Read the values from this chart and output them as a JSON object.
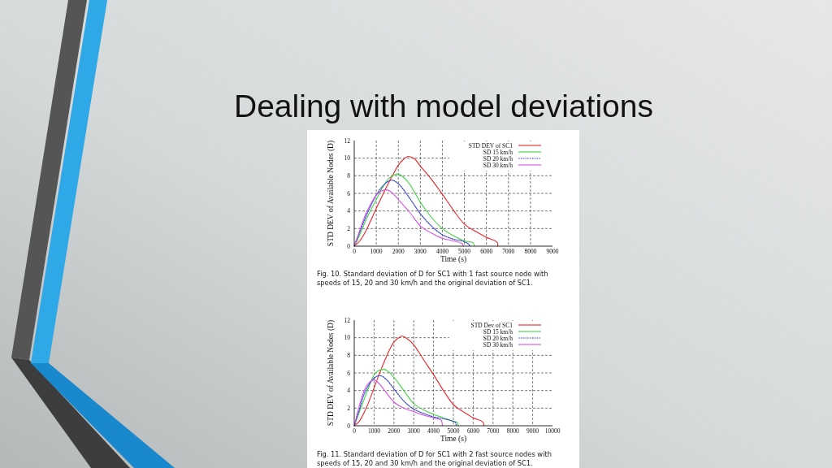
{
  "chart_data": [
    {
      "type": "line",
      "title": "Dealing with model deviations",
      "xlabel": "Time (s)",
      "ylabel": "STD DEV of Available Nodes (D)",
      "xlim": [
        0,
        9000
      ],
      "xticks": [
        0,
        1000,
        2000,
        3000,
        4000,
        5000,
        6000,
        7000,
        8000,
        9000
      ],
      "ylim": [
        0,
        12
      ],
      "yticks": [
        0,
        2,
        4,
        6,
        8,
        10,
        12
      ],
      "grid": true,
      "legend": "top right",
      "annotations": [
        "Fig. 10. Standard deviation of D for SC1 with 1 fast source node with speeds of 15, 20 and 30 km/h and the original deviation of SC1."
      ],
      "series": [
        {
          "name": "STD DEV of SC1",
          "color": "#e8262a",
          "x": [
            0,
            250,
            500,
            750,
            1000,
            1250,
            1500,
            1750,
            2000,
            2250,
            2450,
            2750,
            3000,
            3500,
            4000,
            4500,
            5000,
            5500,
            6000,
            6500,
            6520
          ],
          "values": [
            0,
            0.6,
            1.6,
            2.9,
            4.3,
            5.6,
            6.9,
            8.1,
            9.2,
            9.9,
            10.2,
            9.9,
            9.1,
            7.6,
            5.9,
            4.1,
            2.5,
            1.7,
            1.0,
            0.4,
            0
          ]
        },
        {
          "name": "SD 15 km/h",
          "color": "#44d444",
          "x": [
            0,
            250,
            500,
            750,
            1000,
            1250,
            1500,
            1750,
            1950,
            2250,
            2500,
            3000,
            3500,
            4000,
            4500,
            5000,
            5400,
            5450
          ],
          "values": [
            0,
            1.3,
            2.8,
            4.1,
            5.3,
            6.5,
            7.5,
            8.0,
            8.2,
            7.8,
            7.1,
            5.0,
            3.3,
            2.0,
            1.2,
            0.6,
            0.4,
            0
          ]
        },
        {
          "name": "SD 20 km/h",
          "color": "#2a3ccc",
          "line_style": "dotted",
          "x": [
            0,
            250,
            500,
            750,
            1000,
            1250,
            1500,
            1700,
            2000,
            2500,
            3000,
            3500,
            4000,
            4500,
            5000,
            5200,
            5250
          ],
          "values": [
            0,
            1.6,
            3.2,
            4.6,
            5.8,
            6.7,
            7.3,
            7.5,
            7.1,
            5.5,
            3.7,
            2.3,
            1.3,
            0.8,
            0.5,
            0.2,
            0
          ]
        },
        {
          "name": "SD 30 km/h",
          "color": "#d850e8",
          "x": [
            0,
            250,
            500,
            750,
            1000,
            1250,
            1450,
            1750,
            2000,
            2500,
            3000,
            3500,
            4000,
            4500,
            4900,
            4950
          ],
          "values": [
            0,
            1.8,
            3.5,
            4.8,
            5.8,
            6.3,
            6.4,
            6.0,
            5.3,
            3.9,
            2.3,
            1.5,
            0.9,
            0.6,
            0.3,
            0
          ]
        }
      ]
    },
    {
      "type": "line",
      "xlabel": "Time (s)",
      "ylabel": "STD DEV of Available Nodes (D)",
      "xlim": [
        0,
        10000
      ],
      "xticks": [
        0,
        1000,
        2000,
        3000,
        4000,
        5000,
        6000,
        7000,
        8000,
        9000,
        10000
      ],
      "ylim": [
        0,
        12
      ],
      "yticks": [
        0,
        2,
        4,
        6,
        8,
        10,
        12
      ],
      "grid": true,
      "legend": "top right",
      "annotations": [
        "Fig. 11. Standard deviation of D for SC1 with 2 fast source nodes with speeds of 15, 20 and 30 km/h and the original deviation of SC1."
      ],
      "series": [
        {
          "name": "STD Dev of SC1",
          "color": "#e8262a",
          "x": [
            0,
            250,
            500,
            750,
            1000,
            1250,
            1500,
            1750,
            2000,
            2250,
            2400,
            2600,
            3000,
            3500,
            4000,
            4500,
            5000,
            5500,
            6000,
            6500,
            6550
          ],
          "values": [
            0,
            0.5,
            1.5,
            2.8,
            4.3,
            5.8,
            7.2,
            8.5,
            9.5,
            10.0,
            10.2,
            10.0,
            9.2,
            7.5,
            5.8,
            4.0,
            2.4,
            1.6,
            0.9,
            0.4,
            0
          ]
        },
        {
          "name": "SD 15 km/h",
          "color": "#44d444",
          "x": [
            0,
            250,
            500,
            750,
            1000,
            1250,
            1500,
            1750,
            2000,
            2500,
            3000,
            3500,
            4000,
            4500,
            5000,
            5200,
            5250
          ],
          "values": [
            0,
            1.5,
            3.0,
            4.5,
            5.8,
            6.3,
            6.4,
            6.1,
            5.5,
            4.0,
            2.5,
            1.8,
            1.3,
            0.9,
            0.5,
            0.4,
            0
          ]
        },
        {
          "name": "SD 20 km/h",
          "color": "#2a3ccc",
          "line_style": "dotted",
          "x": [
            0,
            250,
            500,
            750,
            1000,
            1300,
            1600,
            2000,
            2500,
            3000,
            3500,
            4000,
            4500,
            5000,
            5100,
            5150
          ],
          "values": [
            0,
            1.8,
            3.6,
            4.7,
            5.4,
            5.7,
            5.3,
            4.2,
            2.8,
            1.9,
            1.4,
            1.0,
            0.8,
            0.5,
            0.4,
            0
          ]
        },
        {
          "name": "SD 30 km/h",
          "color": "#d850e8",
          "x": [
            0,
            250,
            500,
            750,
            1000,
            1250,
            1500,
            2000,
            2500,
            3000,
            3500,
            4000,
            4400,
            4450
          ],
          "values": [
            0,
            2.2,
            4.0,
            4.9,
            5.2,
            4.8,
            4.1,
            2.7,
            2.0,
            1.6,
            1.2,
            0.9,
            0.6,
            0
          ]
        }
      ]
    }
  ]
}
